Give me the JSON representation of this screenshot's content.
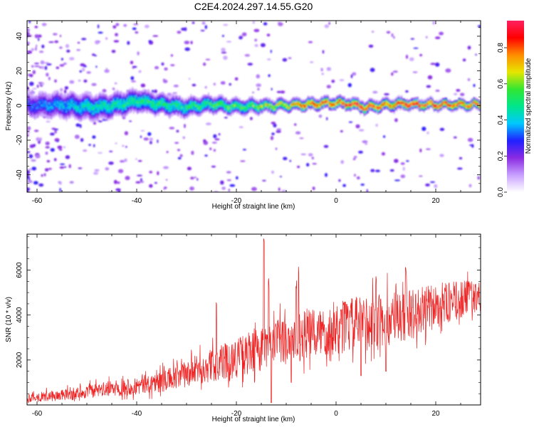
{
  "title": "C2E4.2024.297.14.55.G20",
  "chart_data": [
    {
      "type": "heatmap",
      "xlabel": "Height of straight line (km)",
      "ylabel": "Frequency (Hz)",
      "xlim": [
        -62,
        29
      ],
      "ylim": [
        -50,
        49
      ],
      "x_ticks": [
        -60,
        -40,
        -20,
        0,
        20
      ],
      "y_ticks": [
        -40,
        -20,
        0,
        20,
        40
      ],
      "x_tick_labels": [
        "-60",
        "-40",
        "-20",
        "0",
        "20"
      ],
      "y_tick_labels": [
        "-40",
        "-20",
        "0",
        "20",
        "40"
      ],
      "colorbar": {
        "label": "Normalized spectral amplitude",
        "range": [
          0,
          0.95
        ],
        "ticks": [
          0,
          0.2,
          0.4,
          0.6,
          0.8
        ],
        "tick_labels": [
          "0.0",
          "0.2",
          "0.4",
          "0.6",
          "0.8"
        ],
        "colors": [
          "#ffffff",
          "#c8a0ff",
          "#8a2be2",
          "#2020ff",
          "#00c8ff",
          "#00e68c",
          "#32e632",
          "#e6e600",
          "#ff8c00",
          "#ff0000",
          "#ff2060"
        ]
      },
      "ridge_frequency_hz": [
        [
          -62,
          0
        ],
        [
          -55,
          0.5
        ],
        [
          -50,
          -1
        ],
        [
          -45,
          0
        ],
        [
          -40,
          3
        ],
        [
          -35,
          0.5
        ],
        [
          -30,
          -1
        ],
        [
          -25,
          1
        ],
        [
          -20,
          -0.5
        ],
        [
          -15,
          0
        ],
        [
          -10,
          0
        ],
        [
          -5,
          1
        ],
        [
          0,
          1.5
        ],
        [
          3,
          1
        ],
        [
          6,
          -1
        ],
        [
          10,
          0.5
        ],
        [
          15,
          1
        ],
        [
          20,
          0.5
        ],
        [
          25,
          0.5
        ],
        [
          29,
          1
        ]
      ],
      "ridge_halfwidth_hz": [
        [
          -62,
          7
        ],
        [
          -50,
          7
        ],
        [
          -40,
          6
        ],
        [
          -30,
          5
        ],
        [
          -20,
          4
        ],
        [
          -10,
          3
        ],
        [
          0,
          3
        ],
        [
          10,
          3
        ],
        [
          20,
          2.5
        ],
        [
          29,
          2.5
        ]
      ],
      "ridge_peak_amplitude": [
        [
          -62,
          0.3
        ],
        [
          -50,
          0.45
        ],
        [
          -40,
          0.5
        ],
        [
          -30,
          0.5
        ],
        [
          -20,
          0.55
        ],
        [
          -10,
          0.7
        ],
        [
          -5,
          0.85
        ],
        [
          0,
          0.8
        ],
        [
          5,
          0.9
        ],
        [
          10,
          0.8
        ],
        [
          15,
          0.88
        ],
        [
          20,
          0.9
        ],
        [
          29,
          0.85
        ]
      ]
    },
    {
      "type": "line",
      "xlabel": "Height of straight line (km)",
      "ylabel": "SNR (10 * v/v)",
      "xlim": [
        -62,
        29
      ],
      "ylim": [
        0,
        7600
      ],
      "x_ticks": [
        -60,
        -40,
        -20,
        0,
        20
      ],
      "y_ticks": [
        2000,
        4000,
        6000
      ],
      "x_tick_labels": [
        "-60",
        "-40",
        "-20",
        "0",
        "20"
      ],
      "y_tick_labels": [
        "2000",
        "4000",
        "6000"
      ],
      "line_color": "#ee2222",
      "trend": [
        [
          -62,
          300
        ],
        [
          -55,
          400
        ],
        [
          -50,
          550
        ],
        [
          -45,
          700
        ],
        [
          -40,
          800
        ],
        [
          -35,
          1000
        ],
        [
          -30,
          1300
        ],
        [
          -25,
          1700
        ],
        [
          -20,
          2000
        ],
        [
          -15,
          2400
        ],
        [
          -10,
          2800
        ],
        [
          -5,
          3000
        ],
        [
          0,
          3300
        ],
        [
          5,
          3500
        ],
        [
          10,
          3600
        ],
        [
          15,
          3900
        ],
        [
          20,
          4300
        ],
        [
          25,
          4600
        ],
        [
          29,
          4800
        ]
      ],
      "noise_amplitude": [
        [
          -62,
          200
        ],
        [
          -50,
          300
        ],
        [
          -40,
          400
        ],
        [
          -30,
          600
        ],
        [
          -20,
          900
        ],
        [
          -10,
          1100
        ],
        [
          0,
          1200
        ],
        [
          10,
          1300
        ],
        [
          20,
          1000
        ],
        [
          29,
          700
        ]
      ],
      "spikes": [
        [
          -24,
          4700
        ],
        [
          -14.5,
          7500
        ],
        [
          -13.5,
          5800
        ],
        [
          -8,
          5600
        ],
        [
          -7.5,
          6200
        ],
        [
          1,
          4600
        ],
        [
          8,
          5800
        ],
        [
          12,
          5500
        ],
        [
          14,
          6200
        ],
        [
          20,
          5400
        ],
        [
          27,
          5600
        ]
      ],
      "dips": [
        [
          -13,
          100
        ],
        [
          -9,
          1000
        ],
        [
          5,
          1300
        ],
        [
          10,
          1500
        ]
      ]
    }
  ]
}
